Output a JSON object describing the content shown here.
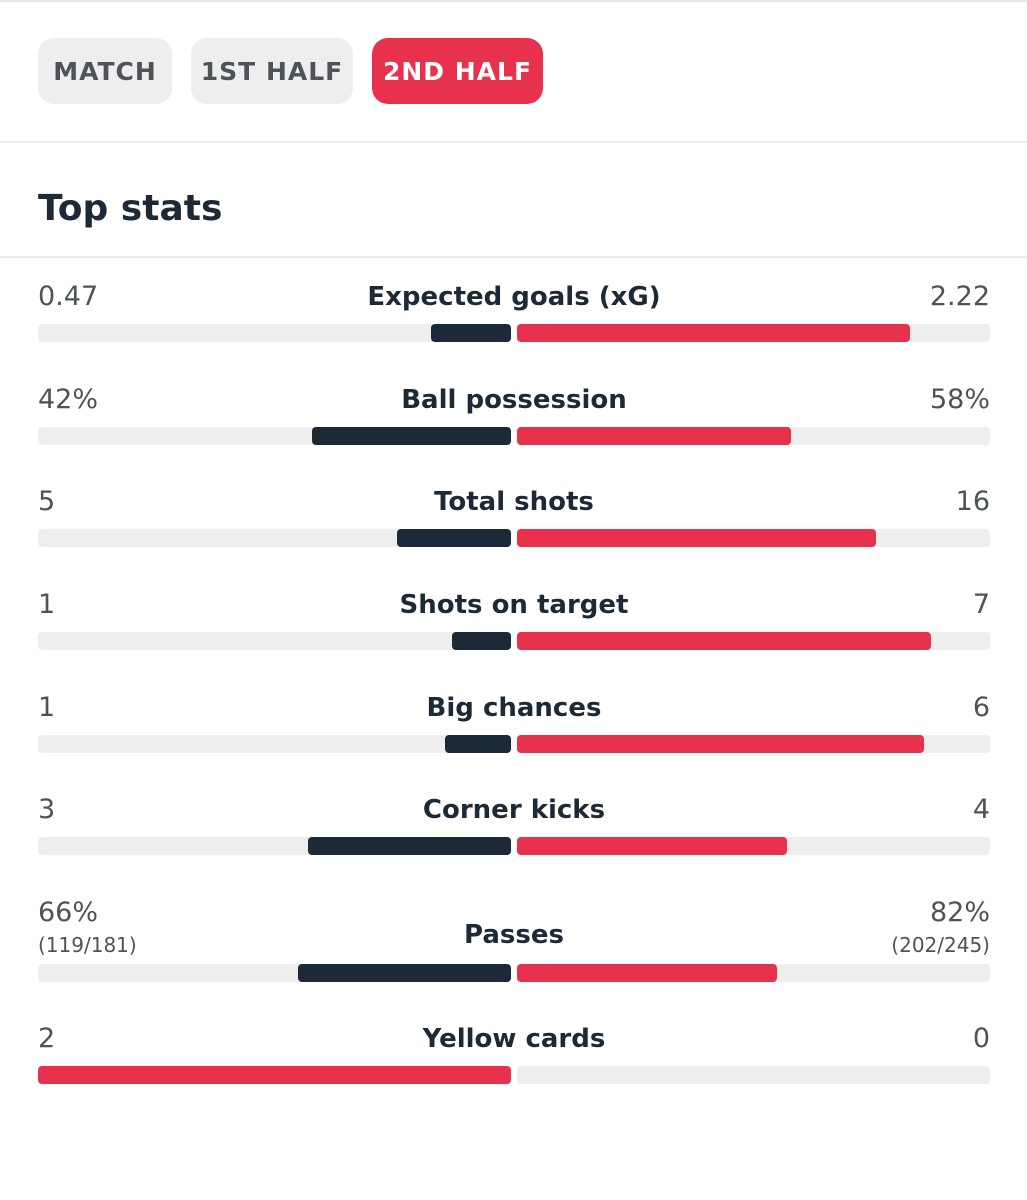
{
  "colors": {
    "accent": "#e8324d",
    "dark": "#1b2a36",
    "track": "#eeeeee"
  },
  "tabs": [
    {
      "label": "MATCH",
      "active": false
    },
    {
      "label": "1ST HALF",
      "active": false
    },
    {
      "label": "2ND HALF",
      "active": true
    }
  ],
  "section": {
    "title": "Top stats"
  },
  "stats": [
    {
      "label": "Expected goals (xG)",
      "home": "0.47",
      "away": "2.22",
      "home_fill": 0.17,
      "away_fill": 0.83,
      "home_color": "#1b2a36",
      "away_color": "#e8324d"
    },
    {
      "label": "Ball possession",
      "home": "42%",
      "away": "58%",
      "home_fill": 0.42,
      "away_fill": 0.58,
      "home_color": "#1b2a36",
      "away_color": "#e8324d"
    },
    {
      "label": "Total shots",
      "home": "5",
      "away": "16",
      "home_fill": 0.24,
      "away_fill": 0.76,
      "home_color": "#1b2a36",
      "away_color": "#e8324d"
    },
    {
      "label": "Shots on target",
      "home": "1",
      "away": "7",
      "home_fill": 0.125,
      "away_fill": 0.875,
      "home_color": "#1b2a36",
      "away_color": "#e8324d"
    },
    {
      "label": "Big chances",
      "home": "1",
      "away": "6",
      "home_fill": 0.14,
      "away_fill": 0.86,
      "home_color": "#1b2a36",
      "away_color": "#e8324d"
    },
    {
      "label": "Corner kicks",
      "home": "3",
      "away": "4",
      "home_fill": 0.43,
      "away_fill": 0.57,
      "home_color": "#1b2a36",
      "away_color": "#e8324d"
    },
    {
      "label": "Passes",
      "home": "66%",
      "away": "82%",
      "home_sub": "(119/181)",
      "away_sub": "(202/245)",
      "home_fill": 0.45,
      "away_fill": 0.55,
      "home_color": "#1b2a36",
      "away_color": "#e8324d"
    },
    {
      "label": "Yellow cards",
      "home": "2",
      "away": "0",
      "home_fill": 1.0,
      "away_fill": 0.0,
      "home_color": "#e8324d",
      "away_color": "#e8324d"
    }
  ]
}
